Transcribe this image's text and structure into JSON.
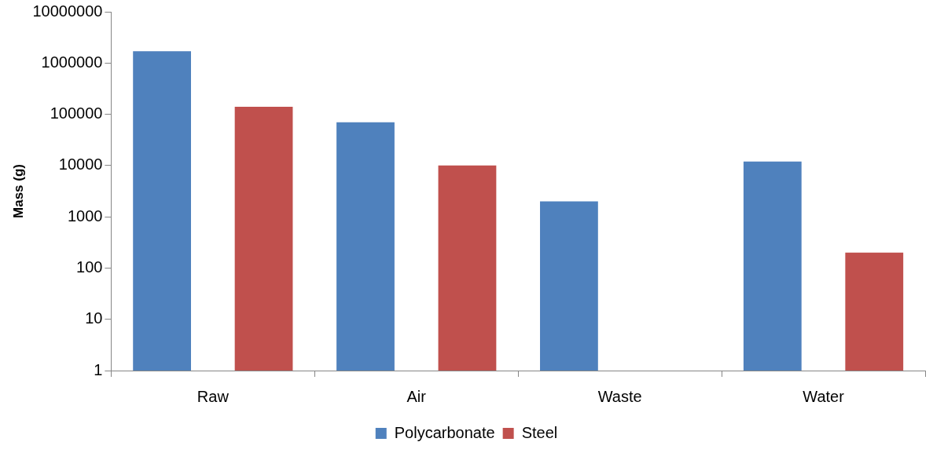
{
  "chart_data": {
    "type": "bar",
    "ylabel": "Mass (g)",
    "log": "y",
    "categories": [
      "Raw",
      "Air",
      "Waste",
      "Water"
    ],
    "series": [
      {
        "name": "Polycarbonate",
        "color": "#4f81bd",
        "values": [
          1700000,
          70000,
          2000,
          12000
        ]
      },
      {
        "name": "Steel",
        "color": "#c0504d",
        "values": [
          140000,
          10000,
          null,
          200
        ]
      }
    ],
    "ylim": [
      1,
      10000000
    ],
    "yticks": [
      1,
      10,
      100,
      1000,
      10000,
      100000,
      1000000,
      10000000
    ],
    "legend": "bottom"
  }
}
